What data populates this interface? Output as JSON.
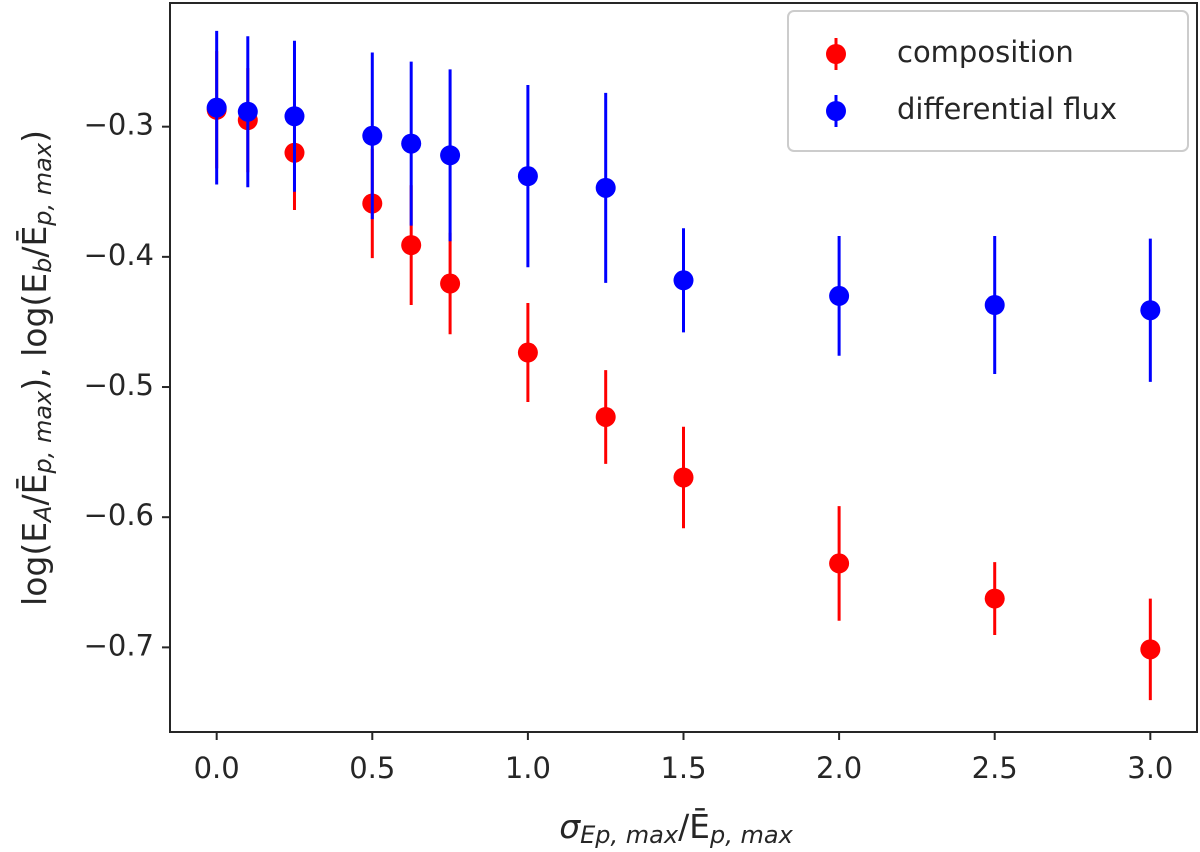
{
  "chart_data": {
    "type": "scatter",
    "xlabel": [
      {
        "text": "σ"
      },
      {
        "text": "Ep, max",
        "sub": true
      },
      {
        "text": "/Ē"
      },
      {
        "text": "p, max",
        "sub": true
      }
    ],
    "ylabel": [
      {
        "text": "log(E"
      },
      {
        "text": "A",
        "sub": true
      },
      {
        "text": "/Ē"
      },
      {
        "text": "p, max",
        "sub": true
      },
      {
        "text": "),  log(E"
      },
      {
        "text": "b",
        "sub": true
      },
      {
        "text": "/Ē"
      },
      {
        "text": "p, max",
        "sub": true
      },
      {
        "text": ")"
      }
    ],
    "x": [
      0,
      0.1,
      0.25,
      0.5,
      0.625,
      0.75,
      1.0,
      1.25,
      1.5,
      2.0,
      2.5,
      3.0
    ],
    "series": [
      {
        "name": "composition",
        "color": "#ff0000",
        "values": [
          -0.287,
          -0.295,
          -0.32,
          -0.359,
          -0.391,
          -0.4205,
          -0.4735,
          -0.523,
          -0.5695,
          -0.6355,
          -0.6625,
          -0.7015
        ],
        "errors": [
          0.045,
          0.04,
          0.044,
          0.042,
          0.046,
          0.039,
          0.038,
          0.036,
          0.039,
          0.044,
          0.028,
          0.039
        ]
      },
      {
        "name": "differential flux",
        "color": "#0000ff",
        "values": [
          -0.2854,
          -0.2885,
          -0.292,
          -0.307,
          -0.313,
          -0.322,
          -0.338,
          -0.347,
          -0.418,
          -0.43,
          -0.437,
          -0.441
        ],
        "errors": [
          0.059,
          0.058,
          0.058,
          0.064,
          0.063,
          0.066,
          0.07,
          0.073,
          0.04,
          0.046,
          0.053,
          0.055
        ]
      }
    ],
    "xlim": [
      -0.15,
      3.15
    ],
    "ylim": [
      -0.765,
      -0.205
    ],
    "xticks": [
      {
        "value": 0,
        "label": "0.0"
      },
      {
        "value": 0.5,
        "label": "0.5"
      },
      {
        "value": 1,
        "label": "1.0"
      },
      {
        "value": 1.5,
        "label": "1.5"
      },
      {
        "value": 2,
        "label": "2.0"
      },
      {
        "value": 2.5,
        "label": "2.5"
      },
      {
        "value": 3,
        "label": "3.0"
      }
    ],
    "yticks": [
      {
        "value": -0.7,
        "label": "−0.7"
      },
      {
        "value": -0.6,
        "label": "−0.6"
      },
      {
        "value": -0.5,
        "label": "−0.5"
      },
      {
        "value": -0.4,
        "label": "−0.4"
      },
      {
        "value": -0.3,
        "label": "−0.3"
      }
    ],
    "legend": "upper right",
    "grid": false
  }
}
